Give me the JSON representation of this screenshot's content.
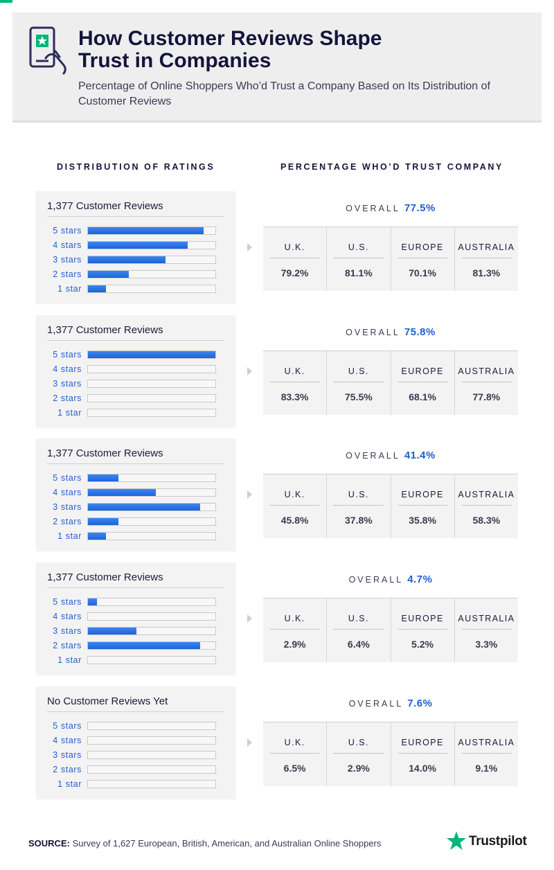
{
  "header": {
    "title_line1": "How Customer Reviews Shape",
    "title_line2": "Trust in Companies",
    "subtitle": "Percentage of Online Shoppers Who’d Trust a Company Based on Its Distribution of Customer Reviews"
  },
  "columns": {
    "left": "DISTRIBUTION OF RATINGS",
    "right": "PERCENTAGE WHO’D TRUST COMPANY"
  },
  "overall_label": "OVERALL",
  "star_labels": [
    "5 stars",
    "4 stars",
    "3 stars",
    "2 stars",
    "1 star"
  ],
  "regions": [
    "U.K.",
    "U.S.",
    "EUROPE",
    "AUSTRALIA"
  ],
  "colors": {
    "accent": "#1e5fd0",
    "brand": "#00b67a"
  },
  "chart_data": [
    {
      "type": "bar",
      "title": "1,377 Customer Reviews",
      "categories": [
        "5 stars",
        "4 stars",
        "3 stars",
        "2 stars",
        "1 star"
      ],
      "values": [
        91,
        78,
        61,
        32,
        14
      ],
      "ylim": [
        0,
        100
      ],
      "overall": "77.5%",
      "by_region": [
        "79.2%",
        "81.1%",
        "70.1%",
        "81.3%"
      ]
    },
    {
      "type": "bar",
      "title": "1,377 Customer Reviews",
      "categories": [
        "5 stars",
        "4 stars",
        "3 stars",
        "2 stars",
        "1 star"
      ],
      "values": [
        100,
        0,
        0,
        0,
        0
      ],
      "ylim": [
        0,
        100
      ],
      "overall": "75.8%",
      "by_region": [
        "83.3%",
        "75.5%",
        "68.1%",
        "77.8%"
      ]
    },
    {
      "type": "bar",
      "title": "1,377 Customer Reviews",
      "categories": [
        "5 stars",
        "4 stars",
        "3 stars",
        "2 stars",
        "1 star"
      ],
      "values": [
        24,
        53,
        88,
        24,
        14
      ],
      "ylim": [
        0,
        100
      ],
      "overall": "41.4%",
      "by_region": [
        "45.8%",
        "37.8%",
        "35.8%",
        "58.3%"
      ]
    },
    {
      "type": "bar",
      "title": "1,377 Customer Reviews",
      "categories": [
        "5 stars",
        "4 stars",
        "3 stars",
        "2 stars",
        "1 star"
      ],
      "values": [
        7,
        0,
        38,
        88,
        0
      ],
      "ylim": [
        0,
        100
      ],
      "overall": "4.7%",
      "by_region": [
        "2.9%",
        "6.4%",
        "5.2%",
        "3.3%"
      ]
    },
    {
      "type": "bar",
      "title": "No Customer Reviews Yet",
      "categories": [
        "5 stars",
        "4 stars",
        "3 stars",
        "2 stars",
        "1 star"
      ],
      "values": [
        0,
        0,
        0,
        0,
        0
      ],
      "ylim": [
        0,
        100
      ],
      "overall": "7.6%",
      "by_region": [
        "6.5%",
        "2.9%",
        "14.0%",
        "9.1%"
      ]
    }
  ],
  "footer": {
    "source_label": "SOURCE:",
    "source_text": "Survey of 1,627 European, British, American, and Australian Online Shoppers",
    "logo_text": "Trustpilot"
  }
}
